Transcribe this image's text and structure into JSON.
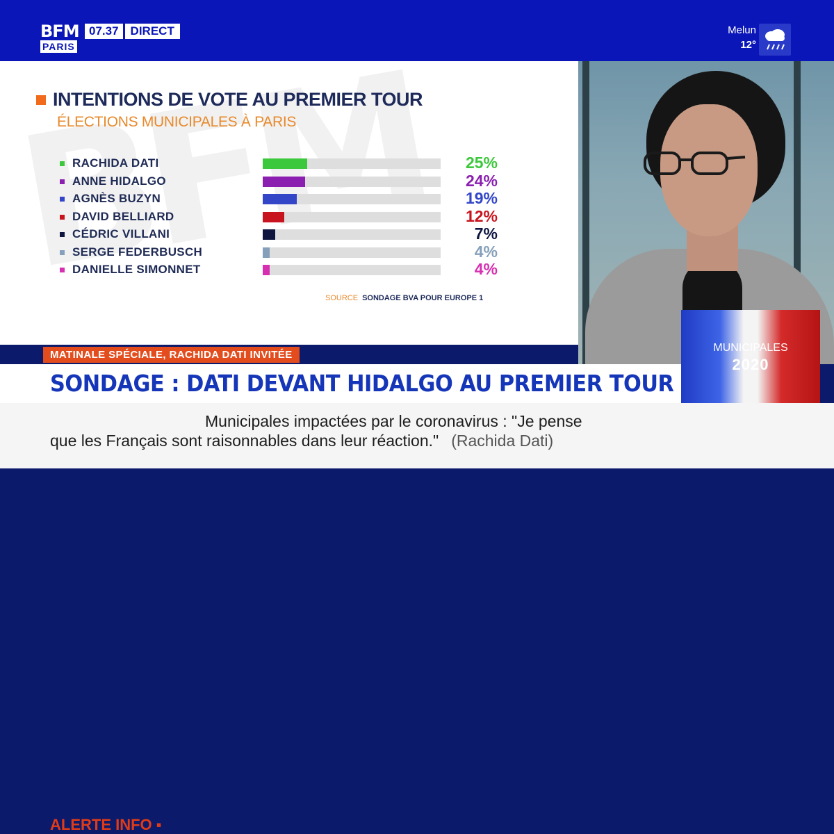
{
  "channel": {
    "logo_top": "BFM",
    "logo_bottom": "PARIS",
    "time": "07.37",
    "live_label": "DIRECT"
  },
  "weather": {
    "city": "Melun",
    "temp": "12°",
    "icon": "rain-cloud-icon"
  },
  "chart_data": {
    "type": "bar",
    "title": "INTENTIONS DE VOTE AU PREMIER TOUR",
    "subtitle": "ÉLECTIONS MUNICIPALES À PARIS",
    "categories": [
      "RACHIDA DATI",
      "ANNE HIDALGO",
      "AGNÈS BUZYN",
      "DAVID BELLIARD",
      "CÉDRIC VILLANI",
      "SERGE FEDERBUSCH",
      "DANIELLE SIMONNET"
    ],
    "values": [
      25,
      24,
      19,
      12,
      7,
      4,
      4
    ],
    "labels": [
      "25%",
      "24%",
      "19%",
      "12%",
      "7%",
      "4%",
      "4%"
    ],
    "colors": [
      "#3cc83c",
      "#8a1fb0",
      "#3346c8",
      "#c8141e",
      "#0e1640",
      "#86a0bb",
      "#d630b0"
    ],
    "ylim": [
      0,
      100
    ],
    "orientation": "horizontal",
    "source_label": "SOURCE",
    "source_value": "SONDAGE BVA POUR EUROPE 1"
  },
  "badge": {
    "line1": "MUNICIPALES",
    "line2": "2020"
  },
  "lower_third": {
    "kicker": "MATINALE SPÉCIALE, RACHIDA DATI INVITÉE",
    "headline": "SONDAGE : DATI DEVANT HIDALGO AU PREMIER TOUR"
  },
  "ticker": {
    "alert": "ALERTE INFO ▪",
    "line1": "Municipales impactées par le coronavirus : \"Je pense",
    "line2": "que les Français sont raisonnables dans leur réaction.\"",
    "attribution": "(Rachida Dati)"
  }
}
